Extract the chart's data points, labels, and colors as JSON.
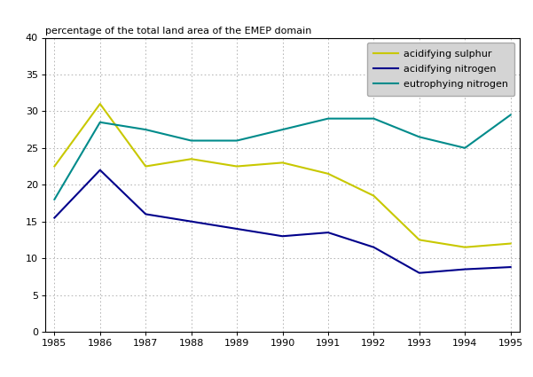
{
  "years": [
    1985,
    1986,
    1987,
    1988,
    1989,
    1990,
    1991,
    1992,
    1993,
    1994,
    1995
  ],
  "acidifying_sulphur": [
    22.5,
    31.0,
    22.5,
    23.5,
    22.5,
    23.0,
    21.5,
    18.5,
    12.5,
    11.5,
    12.0
  ],
  "acidifying_nitrogen": [
    15.5,
    22.0,
    16.0,
    15.0,
    14.0,
    13.0,
    13.5,
    11.5,
    8.0,
    8.5,
    8.8
  ],
  "eutrophying_nitrogen": [
    18.0,
    28.5,
    27.5,
    26.0,
    26.0,
    27.5,
    29.0,
    29.0,
    26.5,
    25.0,
    29.5
  ],
  "color_sulphur": "#c8c800",
  "color_acid_nitrogen": "#00008b",
  "color_eutr_nitrogen": "#008b8b",
  "title": "percentage of the total land area of the EMEP domain",
  "ylim": [
    0,
    40
  ],
  "xlim_min": 1985,
  "xlim_max": 1995,
  "yticks": [
    0,
    5,
    10,
    15,
    20,
    25,
    30,
    35,
    40
  ],
  "xticks": [
    1985,
    1986,
    1987,
    1988,
    1989,
    1990,
    1991,
    1992,
    1993,
    1994,
    1995
  ],
  "legend_labels": [
    "acidifying sulphur",
    "acidifying nitrogen",
    "eutrophying nitrogen"
  ],
  "background_color": "#ffffff",
  "linewidth": 1.5,
  "legend_facecolor": "#d4d4d4",
  "legend_edgecolor": "#aaaaaa"
}
